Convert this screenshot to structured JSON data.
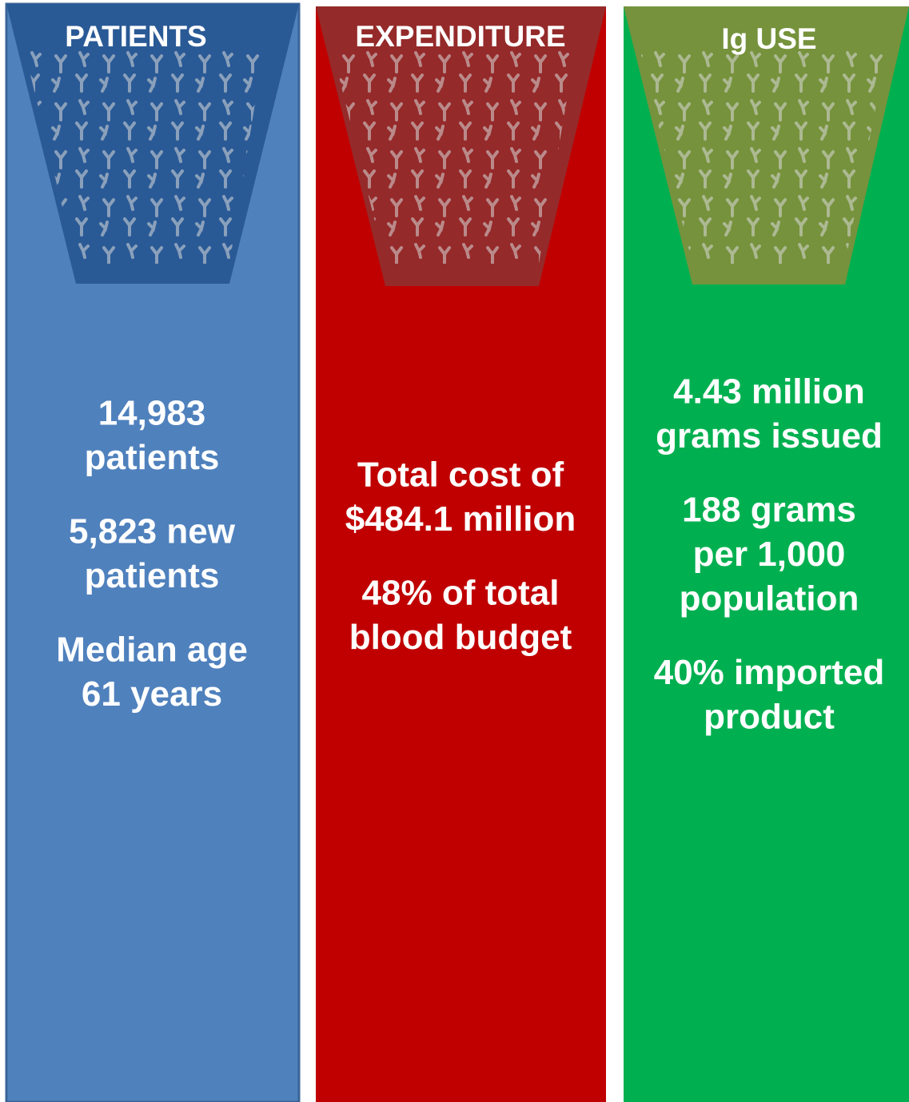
{
  "columns": [
    {
      "title": "PATIENTS",
      "stats": [
        [
          "14,983",
          "patients"
        ],
        [
          "5,823 new",
          "patients"
        ],
        [
          "Median age",
          "61 years"
        ]
      ]
    },
    {
      "title": "EXPENDITURE",
      "stats": [
        [
          "Total cost of",
          "$484.1 million"
        ],
        [
          "48% of total",
          "blood budget"
        ]
      ]
    },
    {
      "title": "Ig USE",
      "stats": [
        [
          "4.43 million",
          "grams issued"
        ],
        [
          "188 grams",
          "per 1,000",
          "population"
        ],
        [
          "40% imported",
          "product"
        ]
      ]
    }
  ]
}
